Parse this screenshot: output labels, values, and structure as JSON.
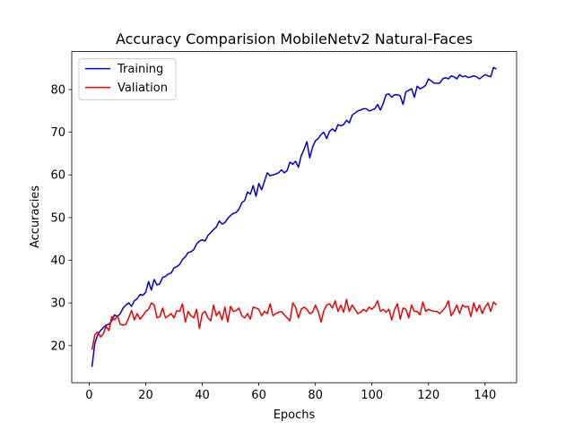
{
  "chart_data": {
    "type": "line",
    "title": "Accuracy Comparision MobileNetv2 Natural-Faces",
    "x_label": "Epochs",
    "y_label": "Accuracies",
    "x": [
      1,
      2,
      3,
      4,
      5,
      6,
      7,
      8,
      9,
      10,
      11,
      12,
      13,
      14,
      15,
      16,
      17,
      18,
      19,
      20,
      21,
      22,
      23,
      24,
      25,
      26,
      27,
      28,
      29,
      30,
      31,
      32,
      33,
      34,
      35,
      36,
      37,
      38,
      39,
      40,
      41,
      42,
      43,
      44,
      45,
      46,
      47,
      48,
      49,
      50,
      51,
      52,
      53,
      54,
      55,
      56,
      57,
      58,
      59,
      60,
      61,
      62,
      63,
      64,
      65,
      66,
      67,
      68,
      69,
      70,
      71,
      72,
      73,
      74,
      75,
      76,
      77,
      78,
      79,
      80,
      81,
      82,
      83,
      84,
      85,
      86,
      87,
      88,
      89,
      90,
      91,
      92,
      93,
      94,
      95,
      96,
      97,
      98,
      99,
      100,
      101,
      102,
      103,
      104,
      105,
      106,
      107,
      108,
      109,
      110,
      111,
      112,
      113,
      114,
      115,
      116,
      117,
      118,
      119,
      120,
      121,
      122,
      123,
      124,
      125,
      126,
      127,
      128,
      129,
      130,
      131,
      132,
      133,
      134,
      135,
      136,
      137,
      138,
      139,
      140,
      141,
      142,
      143,
      144
    ],
    "series": [
      {
        "name": "Training",
        "color": "#0000cd",
        "values": [
          15,
          20.5,
          22.5,
          23.5,
          24.2,
          24.8,
          25.0,
          25.8,
          27.2,
          26.8,
          27.5,
          28.8,
          29.5,
          30.0,
          29.2,
          30.5,
          31.0,
          32.0,
          31.8,
          32.5,
          35.0,
          33.0,
          35.5,
          34.2,
          34.5,
          36.0,
          36.2,
          36.8,
          37.0,
          38.2,
          38.5,
          39.0,
          40.2,
          40.8,
          41.8,
          42.0,
          42.5,
          43.8,
          44.5,
          44.8,
          44.5,
          45.8,
          46.5,
          47.2,
          47.8,
          49.2,
          48.5,
          48.8,
          49.8,
          50.5,
          51.0,
          51.2,
          52.0,
          53.5,
          54.0,
          56.0,
          55.5,
          57.5,
          55.0,
          58.0,
          56.5,
          58.5,
          60.5,
          59.8,
          60.0,
          60.2,
          60.5,
          61.2,
          60.5,
          61.0,
          63.0,
          62.5,
          63.2,
          61.8,
          64.5,
          66.0,
          67.8,
          64.0,
          66.5,
          68.0,
          68.5,
          69.5,
          70.0,
          68.5,
          70.2,
          70.8,
          70.2,
          71.8,
          71.5,
          71.8,
          72.8,
          72.2,
          74.0,
          74.5,
          75.0,
          75.2,
          75.5,
          75.5,
          75.0,
          75.2,
          75.5,
          76.5,
          75.2,
          76.8,
          78.8,
          79.0,
          78.2,
          78.8,
          78.8,
          78.5,
          76.5,
          79.5,
          79.8,
          80.2,
          78.2,
          80.8,
          80.2,
          80.5,
          81.0,
          82.5,
          82.0,
          81.5,
          81.5,
          81.5,
          82.5,
          82.8,
          82.5,
          83.2,
          83.0,
          82.5,
          83.5,
          83.0,
          83.2,
          82.8,
          83.0,
          83.2,
          83.0,
          82.5,
          83.0,
          83.5,
          83.2,
          83.0,
          85.2,
          84.8
        ]
      },
      {
        "name": "Valiation",
        "color": "#ee0000",
        "values": [
          19.0,
          22.5,
          23.2,
          22.0,
          22.8,
          24.5,
          23.5,
          26.8,
          26.0,
          27.0,
          25.0,
          24.8,
          25.0,
          26.5,
          28.2,
          26.0,
          27.5,
          26.2,
          27.0,
          28.0,
          28.5,
          30.0,
          29.5,
          26.5,
          26.8,
          28.8,
          26.5,
          27.0,
          27.5,
          26.5,
          28.2,
          28.0,
          29.8,
          25.5,
          28.0,
          27.0,
          26.5,
          28.5,
          24.0,
          27.5,
          28.0,
          26.5,
          25.8,
          29.5,
          27.0,
          28.0,
          26.0,
          29.0,
          25.5,
          29.2,
          28.0,
          28.2,
          28.8,
          27.0,
          26.5,
          27.5,
          26.2,
          29.0,
          28.8,
          28.5,
          27.0,
          28.0,
          27.5,
          29.8,
          27.0,
          27.5,
          27.8,
          28.0,
          27.2,
          26.5,
          25.8,
          30.0,
          29.0,
          26.5,
          28.5,
          29.0,
          28.5,
          27.5,
          27.8,
          29.5,
          28.0,
          25.5,
          28.2,
          29.5,
          29.8,
          28.8,
          30.5,
          28.0,
          29.5,
          27.8,
          30.8,
          28.0,
          29.5,
          28.5,
          27.5,
          27.8,
          28.5,
          28.0,
          29.0,
          28.5,
          29.2,
          30.5,
          28.0,
          28.5,
          27.8,
          28.5,
          26.0,
          28.5,
          29.8,
          26.2,
          28.8,
          28.5,
          26.5,
          29.5,
          28.0,
          28.0,
          27.2,
          30.2,
          28.0,
          28.5,
          28.2,
          28.0,
          28.0,
          27.5,
          28.2,
          29.0,
          30.5,
          27.0,
          28.0,
          29.5,
          27.5,
          29.5,
          29.0,
          29.2,
          26.8,
          30.0,
          28.0,
          29.5,
          27.5,
          29.0,
          30.0,
          28.0,
          30.2,
          29.5
        ]
      }
    ],
    "xlim": [
      -6.15,
      151.15
    ],
    "ylim": [
      11.3,
      88.9
    ],
    "xticks": [
      0,
      20,
      40,
      60,
      80,
      100,
      120,
      140
    ],
    "yticks": [
      20,
      30,
      40,
      50,
      60,
      70,
      80
    ],
    "legend": "upper left"
  }
}
